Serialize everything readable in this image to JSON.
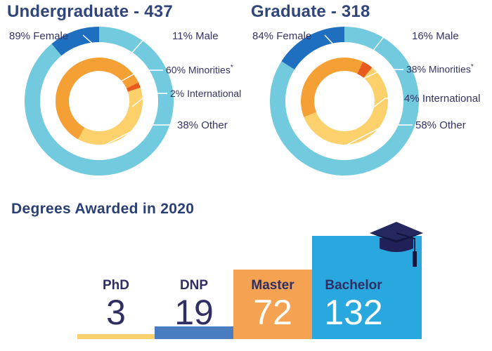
{
  "colors": {
    "female": "#72cade",
    "male": "#1e6fbf",
    "minorities": "#f5a034",
    "international": "#e85a1e",
    "other": "#fcd06b",
    "phd": "#fcd06b",
    "dnp": "#4a7dbf",
    "master": "#f5a253",
    "bachelor": "#29a8e0",
    "dark_text": "#2f2f63"
  },
  "chart_data": [
    {
      "type": "pie",
      "title": "Undergraduate - 437",
      "series": [
        {
          "values": [
            89,
            11
          ],
          "labels": [
            "89% Female",
            "11% Male"
          ]
        },
        {
          "values": [
            60,
            2,
            38
          ],
          "labels": [
            "60% Minorities*",
            "2% International",
            "38% Other"
          ]
        }
      ]
    },
    {
      "type": "pie",
      "title": "Graduate - 318",
      "series": [
        {
          "values": [
            84,
            16
          ],
          "labels": [
            "84% Female",
            "16% Male"
          ]
        },
        {
          "values": [
            38,
            4,
            58
          ],
          "labels": [
            "38% Minorities*",
            "4% International",
            "58% Other"
          ]
        }
      ]
    },
    {
      "type": "bar",
      "title": "Degrees Awarded in 2020",
      "categories": [
        "PhD",
        "DNP",
        "Master",
        "Bachelor"
      ],
      "values": [
        3,
        19,
        72,
        132
      ]
    }
  ],
  "undergrad": {
    "title": "Undergraduate - 437",
    "female": "89% Female",
    "male": "11% Male",
    "minorities": "60% Minorities",
    "international": "2% International",
    "other": "38% Other"
  },
  "graduate": {
    "title": "Graduate - 318",
    "female": "84% Female",
    "male": "16% Male",
    "minorities": "38% Minorities",
    "international": "4% International",
    "other": "58% Other"
  },
  "footnote_mark": "*",
  "degrees": {
    "title": "Degrees Awarded in 2020",
    "items": [
      {
        "name": "PhD",
        "value": "3"
      },
      {
        "name": "DNP",
        "value": "19"
      },
      {
        "name": "Master",
        "value": "72"
      },
      {
        "name": "Bachelor",
        "value": "132"
      }
    ]
  },
  "graduation_cap_icon": "graduation-cap-icon"
}
